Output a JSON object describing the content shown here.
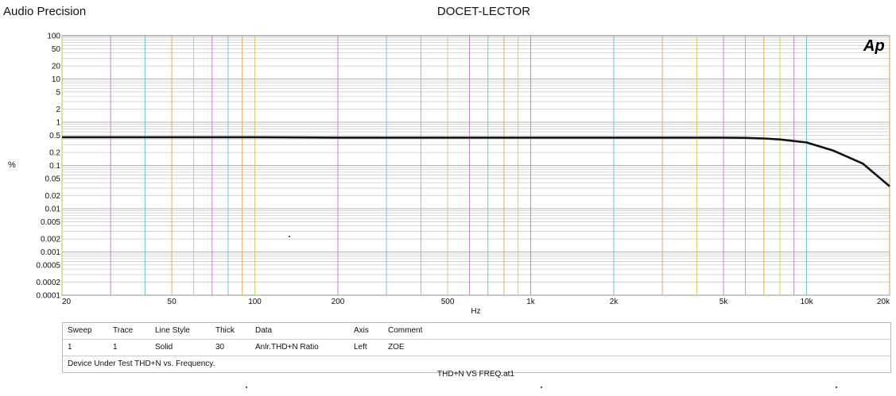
{
  "header": {
    "brand": "Audio Precision",
    "title": "DOCET-LECTOR",
    "logo": "Ap"
  },
  "chart_data": {
    "type": "line",
    "title": "DOCET-LECTOR",
    "xlabel": "Hz",
    "ylabel": "%",
    "xscale": "log",
    "yscale": "log",
    "xlim": [
      20,
      20000
    ],
    "ylim": [
      0.0001,
      100
    ],
    "x_ticks": [
      "20",
      "50",
      "100",
      "200",
      "500",
      "1k",
      "2k",
      "5k",
      "10k",
      "20k"
    ],
    "y_ticks": [
      "100",
      "50",
      "20",
      "10",
      "5",
      "2",
      "1",
      "0.5",
      "0.2",
      "0.1",
      "0.05",
      "0.02",
      "0.01",
      "0.005",
      "0.002",
      "0.001",
      "0.0005",
      "0.0002",
      "0.0001"
    ],
    "grid": true,
    "series": [
      {
        "color": "#111111",
        "x": [
          20,
          30,
          50,
          100,
          200,
          500,
          1000,
          2000,
          3000,
          5000,
          6000,
          7000,
          8000,
          10000,
          12500,
          16000,
          20000
        ],
        "y": [
          0.45,
          0.45,
          0.45,
          0.45,
          0.44,
          0.44,
          0.44,
          0.44,
          0.44,
          0.44,
          0.435,
          0.42,
          0.4,
          0.34,
          0.22,
          0.11,
          0.033
        ]
      }
    ]
  },
  "legend": {
    "headers": [
      "Sweep",
      "Trace",
      "Line Style",
      "Thick",
      "Data",
      "Axis",
      "Comment"
    ],
    "rows": [
      [
        "1",
        "1",
        "Solid",
        "30",
        "Anlr.THD+N Ratio",
        "Left",
        "ZOE"
      ]
    ],
    "description": "Device Under Test THD+N vs. Frequency."
  },
  "footer": {
    "filename": "THD+N VS FREQ.at1"
  },
  "colors": {
    "grid_major": "#9a9a9a",
    "grid_minor": "#c8c8c8",
    "decade_lines": [
      "#d4c84a",
      "#c070c8",
      "#60b8d8",
      "#e0a040"
    ],
    "trace": "#111111"
  }
}
